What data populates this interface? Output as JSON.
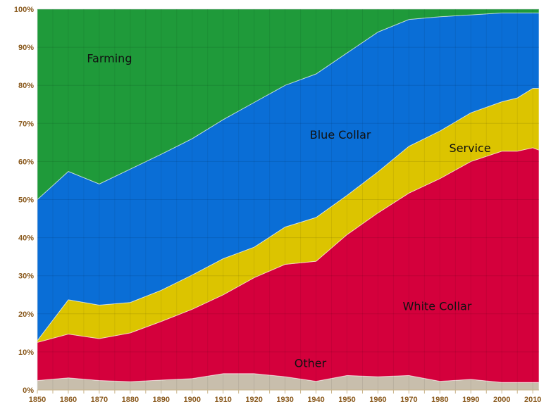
{
  "chart_data": {
    "type": "area",
    "stacked": true,
    "title": "",
    "xlabel": "",
    "ylabel": "",
    "x": [
      1850,
      1860,
      1870,
      1880,
      1890,
      1900,
      1910,
      1920,
      1930,
      1940,
      1950,
      1960,
      1970,
      1980,
      1990,
      2000,
      2005,
      2010,
      2012
    ],
    "xlim": [
      1850,
      2012
    ],
    "ylim": [
      0,
      100
    ],
    "x_ticks": [
      "1850",
      "1860",
      "1870",
      "1880",
      "1890",
      "1900",
      "1910",
      "1920",
      "1930",
      "1940",
      "1950",
      "1960",
      "1970",
      "1980",
      "1990",
      "2000",
      "2010"
    ],
    "y_ticks": [
      "0%",
      "10%",
      "20%",
      "30%",
      "40%",
      "50%",
      "60%",
      "70%",
      "80%",
      "90%",
      "100%"
    ],
    "grid": true,
    "series": [
      {
        "name": "Other",
        "color": "#c8beac",
        "values": [
          2.5,
          3.2,
          2.5,
          2.2,
          2.6,
          3.0,
          4.3,
          4.3,
          3.5,
          2.3,
          3.8,
          3.5,
          3.8,
          2.3,
          2.8,
          2.0,
          2.0,
          2.0,
          2.0
        ]
      },
      {
        "name": "White Collar",
        "color": "#d4003c",
        "values": [
          10.0,
          11.5,
          11.0,
          12.8,
          15.4,
          18.2,
          20.7,
          25.2,
          29.5,
          31.5,
          37.0,
          43.0,
          47.9,
          53.2,
          57.2,
          60.7,
          60.7,
          61.6,
          61.0
        ]
      },
      {
        "name": "Service",
        "color": "#dcc400",
        "values": [
          0.5,
          9.0,
          8.8,
          8.0,
          8.2,
          9.0,
          9.5,
          8.0,
          9.8,
          11.5,
          10.3,
          10.8,
          12.3,
          12.5,
          12.8,
          13.0,
          14.0,
          15.6,
          16.2
        ]
      },
      {
        "name": "Blue Collar",
        "color": "#0a6ed6",
        "values": [
          37.0,
          33.7,
          31.8,
          35.0,
          35.7,
          35.8,
          36.5,
          38.0,
          37.2,
          37.7,
          37.4,
          36.7,
          33.3,
          30.0,
          25.7,
          23.3,
          22.3,
          19.8,
          19.8
        ]
      },
      {
        "name": "Farming",
        "color": "#1f9a3a",
        "values": [
          50.0,
          42.6,
          45.9,
          42.0,
          38.1,
          34.0,
          29.0,
          24.5,
          20.0,
          17.0,
          11.5,
          6.0,
          2.7,
          2.0,
          1.5,
          1.0,
          1.0,
          1.0,
          1.0
        ]
      }
    ],
    "labels": [
      {
        "text": "Farming",
        "x": 1866,
        "y": 86,
        "color": "#111111"
      },
      {
        "text": "Blue Collar",
        "x": 1938,
        "y": 66,
        "color": "#111111"
      },
      {
        "text": "Service",
        "x": 1983,
        "y": 62.5,
        "color": "#111111"
      },
      {
        "text": "White Collar",
        "x": 1968,
        "y": 21,
        "color": "#111111"
      },
      {
        "text": "Other",
        "x": 1933,
        "y": 6,
        "color": "#111111"
      }
    ]
  }
}
